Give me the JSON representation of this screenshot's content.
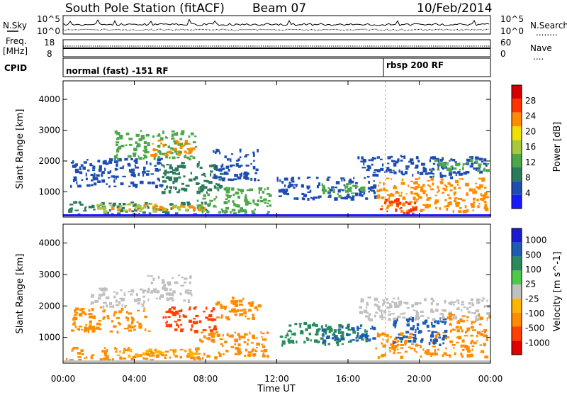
{
  "header": {
    "station": "South Pole Station (fitACF)",
    "beam": "Beam 07",
    "date": "10/Feb/2014"
  },
  "side_labels": {
    "nsky": "N.Sky",
    "freq_line1": "Freq.",
    "freq_line2": "[MHz]",
    "cpid": "CPID",
    "nsearch": "N.Search",
    "nave": "Nave",
    "nsearch_dots": "........",
    "nave_dots": "...."
  },
  "noise_axis": {
    "left_top": "10^5",
    "left_bottom": "10^0",
    "right_top": "10^5",
    "right_bottom": "10^0"
  },
  "freq_axis": {
    "left_top": "18",
    "left_bottom": "8",
    "right_top": "60",
    "right_bottom": "0"
  },
  "cpid_labels": {
    "first": "normal (fast) -151 RF",
    "second": "rbsp 200 RF"
  },
  "chart_data": [
    {
      "type": "heatmap",
      "title": "Power",
      "xlabel": "Time UT",
      "ylabel": "Slant Range [km]",
      "x_ticks": [
        "00:00",
        "04:00",
        "08:00",
        "12:00",
        "16:00",
        "20:00",
        "00:00"
      ],
      "y_ticks": [
        "1000",
        "2000",
        "3000",
        "4000"
      ],
      "y_tick_values": [
        1000,
        2000,
        3000,
        4000
      ],
      "ylim": [
        180,
        4600
      ],
      "xlim_hours": [
        0,
        24
      ],
      "colorbar": {
        "label": "Power [dB]",
        "ticks": [
          "4",
          "8",
          "12",
          "16",
          "20",
          "24",
          "28"
        ],
        "colors": [
          "#1a1aff",
          "#1d4db0",
          "#2b7a5c",
          "#4da64a",
          "#a6c83a",
          "#f0e000",
          "#ff8c00",
          "#ff3300",
          "#d40000"
        ]
      },
      "regions": [
        {
          "t0": 0.1,
          "t1": 8.2,
          "r0": 300,
          "r1": 700,
          "c": "#2b7a5c"
        },
        {
          "t0": 1.8,
          "t1": 8.0,
          "r0": 400,
          "r1": 650,
          "c": "#a6c83a"
        },
        {
          "t0": 2.6,
          "t1": 7.8,
          "r0": 450,
          "r1": 600,
          "c": "#ff8c00"
        },
        {
          "t0": 7.4,
          "t1": 11.6,
          "r0": 300,
          "r1": 1200,
          "c": "#4da64a"
        },
        {
          "t0": 0.3,
          "t1": 5.5,
          "r0": 1200,
          "r1": 2100,
          "c": "#1d4db0"
        },
        {
          "t0": 2.8,
          "t1": 7.4,
          "r0": 2100,
          "r1": 3000,
          "c": "#4da64a"
        },
        {
          "t0": 4.8,
          "t1": 7.2,
          "r0": 2200,
          "r1": 2700,
          "c": "#ff8c00"
        },
        {
          "t0": 5.5,
          "t1": 8.8,
          "r0": 1000,
          "r1": 2000,
          "c": "#2b7a5c"
        },
        {
          "t0": 8.4,
          "t1": 11.0,
          "r0": 1400,
          "r1": 2400,
          "c": "#1d4db0"
        },
        {
          "t0": 11.8,
          "t1": 17.5,
          "r0": 800,
          "r1": 1500,
          "c": "#1d4db0"
        },
        {
          "t0": 14.5,
          "t1": 16.8,
          "r0": 900,
          "r1": 1300,
          "c": "#4da64a"
        },
        {
          "t0": 17.5,
          "t1": 23.8,
          "r0": 400,
          "r1": 1500,
          "c": "#ff8c00"
        },
        {
          "t0": 17.8,
          "t1": 19.8,
          "r0": 300,
          "r1": 800,
          "c": "#ff3300"
        },
        {
          "t0": 16.5,
          "t1": 23.9,
          "r0": 1500,
          "r1": 2200,
          "c": "#1d4db0"
        },
        {
          "t0": 20.5,
          "t1": 23.9,
          "r0": 1700,
          "r1": 2100,
          "c": "#4da64a"
        }
      ]
    },
    {
      "type": "heatmap",
      "title": "Velocity",
      "xlabel": "Time UT",
      "ylabel": "Slant Range [km]",
      "x_ticks": [
        "00:00",
        "04:00",
        "08:00",
        "12:00",
        "16:00",
        "20:00",
        "00:00"
      ],
      "y_ticks": [
        "1000",
        "2000",
        "3000",
        "4000"
      ],
      "y_tick_values": [
        1000,
        2000,
        3000,
        4000
      ],
      "ylim": [
        180,
        4600
      ],
      "xlim_hours": [
        0,
        24
      ],
      "colorbar": {
        "label": "Velocity [m s^-1]",
        "ticks": [
          "1000",
          "500",
          "100",
          "25",
          "-25",
          "-100",
          "-500",
          "-1000"
        ],
        "colors": [
          "#1a1ad0",
          "#1d5cb0",
          "#2b8a5c",
          "#4dc84a",
          "#c0c0c0",
          "#ffb400",
          "#ff8c00",
          "#ff4000",
          "#e00000"
        ]
      },
      "regions": [
        {
          "t0": 0.1,
          "t1": 8.0,
          "r0": 300,
          "r1": 700,
          "c": "#ff8c00"
        },
        {
          "t0": 2.5,
          "t1": 7.5,
          "r0": 450,
          "r1": 650,
          "c": "#ffb400"
        },
        {
          "t0": 7.6,
          "t1": 11.5,
          "r0": 400,
          "r1": 1200,
          "c": "#ff8c00"
        },
        {
          "t0": 0.4,
          "t1": 4.8,
          "r0": 1200,
          "r1": 2000,
          "c": "#ff8c00"
        },
        {
          "t0": 1.5,
          "t1": 4.5,
          "r0": 2000,
          "r1": 2600,
          "c": "#c0c0c0"
        },
        {
          "t0": 4.6,
          "t1": 7.2,
          "r0": 2200,
          "r1": 3000,
          "c": "#c0c0c0"
        },
        {
          "t0": 5.5,
          "t1": 8.5,
          "r0": 1200,
          "r1": 2000,
          "c": "#ff4000"
        },
        {
          "t0": 8.5,
          "t1": 11.0,
          "r0": 1600,
          "r1": 2300,
          "c": "#ff8c00"
        },
        {
          "t0": 12.0,
          "t1": 17.0,
          "r0": 800,
          "r1": 1500,
          "c": "#2b8a5c"
        },
        {
          "t0": 14.5,
          "t1": 17.5,
          "r0": 900,
          "r1": 1400,
          "c": "#1d5cb0"
        },
        {
          "t0": 17.5,
          "t1": 23.8,
          "r0": 400,
          "r1": 1200,
          "c": "#ff8c00"
        },
        {
          "t0": 18.5,
          "t1": 21.5,
          "r0": 800,
          "r1": 1700,
          "c": "#1d5cb0"
        },
        {
          "t0": 16.5,
          "t1": 23.9,
          "r0": 1600,
          "r1": 2300,
          "c": "#c0c0c0"
        },
        {
          "t0": 21.5,
          "t1": 23.9,
          "r0": 1200,
          "r1": 1800,
          "c": "#ff8c00"
        }
      ]
    }
  ]
}
